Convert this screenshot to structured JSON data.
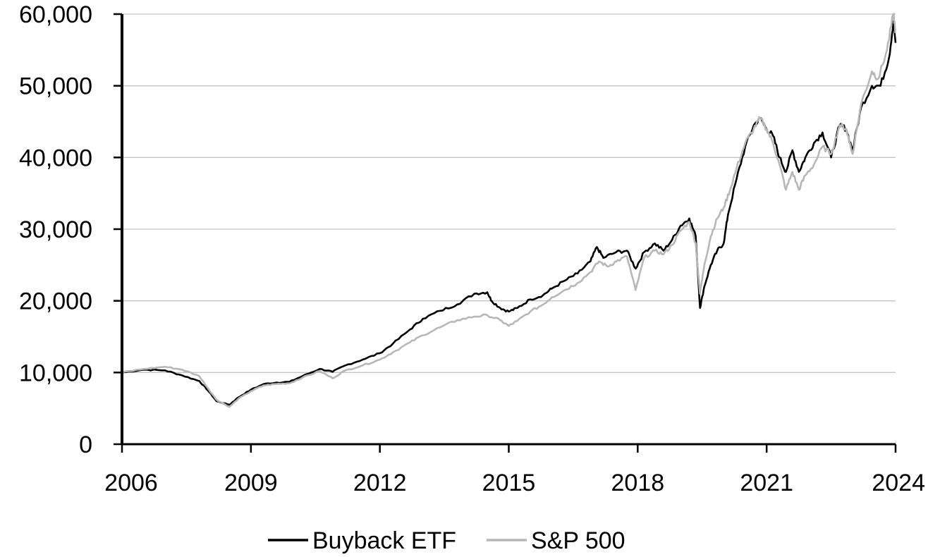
{
  "chart_data": {
    "type": "line",
    "title": "",
    "xlabel": "",
    "ylabel": "",
    "xlim": [
      2006,
      2024
    ],
    "ylim": [
      0,
      60000
    ],
    "grid": "horizontal",
    "legend_position": "bottom",
    "x_ticks": [
      "2006",
      "2009",
      "2012",
      "2015",
      "2018",
      "2021",
      "2024"
    ],
    "y_ticks": [
      "0",
      "10,000",
      "20,000",
      "30,000",
      "40,000",
      "50,000",
      "60,000"
    ],
    "series": [
      {
        "name": "Buyback ETF",
        "color": "#000000",
        "points": [
          [
            2006.0,
            10000
          ],
          [
            2006.5,
            10400
          ],
          [
            2007.0,
            10300
          ],
          [
            2007.4,
            9600
          ],
          [
            2007.8,
            8800
          ],
          [
            2008.0,
            7500
          ],
          [
            2008.2,
            6000
          ],
          [
            2008.5,
            5500
          ],
          [
            2008.7,
            6500
          ],
          [
            2009.0,
            7600
          ],
          [
            2009.3,
            8400
          ],
          [
            2009.6,
            8600
          ],
          [
            2009.9,
            8700
          ],
          [
            2010.2,
            9500
          ],
          [
            2010.6,
            10500
          ],
          [
            2010.9,
            10100
          ],
          [
            2011.2,
            11000
          ],
          [
            2011.6,
            11800
          ],
          [
            2012.0,
            12700
          ],
          [
            2012.3,
            14000
          ],
          [
            2012.7,
            16000
          ],
          [
            2013.0,
            17500
          ],
          [
            2013.4,
            18600
          ],
          [
            2013.8,
            19500
          ],
          [
            2014.2,
            21000
          ],
          [
            2014.5,
            21200
          ],
          [
            2014.6,
            20000
          ],
          [
            2014.8,
            19000
          ],
          [
            2015.0,
            18500
          ],
          [
            2015.2,
            19000
          ],
          [
            2015.5,
            20200
          ],
          [
            2015.8,
            20800
          ],
          [
            2016.0,
            21700
          ],
          [
            2016.3,
            22800
          ],
          [
            2016.6,
            23800
          ],
          [
            2016.9,
            25500
          ],
          [
            2017.05,
            27500
          ],
          [
            2017.2,
            26000
          ],
          [
            2017.5,
            26800
          ],
          [
            2017.75,
            27000
          ],
          [
            2017.95,
            24500
          ],
          [
            2018.15,
            26800
          ],
          [
            2018.4,
            28000
          ],
          [
            2018.6,
            27000
          ],
          [
            2018.8,
            28500
          ],
          [
            2019.0,
            30500
          ],
          [
            2019.2,
            31500
          ],
          [
            2019.35,
            29000
          ],
          [
            2019.45,
            19000
          ],
          [
            2019.55,
            22000
          ],
          [
            2019.7,
            25000
          ],
          [
            2019.85,
            27000
          ],
          [
            2020.0,
            28000
          ],
          [
            2020.1,
            32000
          ],
          [
            2020.3,
            37000
          ],
          [
            2020.5,
            41500
          ],
          [
            2020.7,
            44500
          ],
          [
            2020.85,
            45500
          ],
          [
            2021.0,
            44000
          ],
          [
            2021.15,
            43000
          ],
          [
            2021.3,
            40000
          ],
          [
            2021.45,
            38000
          ],
          [
            2021.6,
            41000
          ],
          [
            2021.75,
            38000
          ],
          [
            2021.9,
            40000
          ],
          [
            2022.1,
            42000
          ],
          [
            2022.3,
            43500
          ],
          [
            2022.5,
            40000
          ],
          [
            2022.7,
            44500
          ],
          [
            2022.85,
            44000
          ],
          [
            2023.0,
            41000
          ],
          [
            2023.2,
            47000
          ],
          [
            2023.45,
            50000
          ],
          [
            2023.65,
            50000
          ],
          [
            2023.85,
            54000
          ],
          [
            2023.95,
            59000
          ],
          [
            2024.0,
            56000
          ]
        ]
      },
      {
        "name": "S&P 500",
        "color": "#b7b7b7",
        "points": [
          [
            2006.0,
            10000
          ],
          [
            2006.5,
            10500
          ],
          [
            2007.0,
            10800
          ],
          [
            2007.4,
            10400
          ],
          [
            2007.8,
            9500
          ],
          [
            2008.0,
            7800
          ],
          [
            2008.2,
            6200
          ],
          [
            2008.5,
            5200
          ],
          [
            2008.7,
            6300
          ],
          [
            2009.0,
            7400
          ],
          [
            2009.3,
            8200
          ],
          [
            2009.6,
            8400
          ],
          [
            2009.9,
            8500
          ],
          [
            2010.2,
            9300
          ],
          [
            2010.6,
            10200
          ],
          [
            2010.9,
            9200
          ],
          [
            2011.2,
            10300
          ],
          [
            2011.6,
            11000
          ],
          [
            2012.0,
            11800
          ],
          [
            2012.3,
            12800
          ],
          [
            2012.7,
            14200
          ],
          [
            2013.0,
            15200
          ],
          [
            2013.4,
            16300
          ],
          [
            2013.8,
            17300
          ],
          [
            2014.2,
            17800
          ],
          [
            2014.5,
            18000
          ],
          [
            2014.8,
            17300
          ],
          [
            2015.0,
            16500
          ],
          [
            2015.2,
            17200
          ],
          [
            2015.5,
            18500
          ],
          [
            2015.8,
            19500
          ],
          [
            2016.0,
            20500
          ],
          [
            2016.3,
            21500
          ],
          [
            2016.6,
            22500
          ],
          [
            2016.9,
            24000
          ],
          [
            2017.1,
            25500
          ],
          [
            2017.3,
            24800
          ],
          [
            2017.5,
            25500
          ],
          [
            2017.75,
            26200
          ],
          [
            2017.95,
            21500
          ],
          [
            2018.15,
            26000
          ],
          [
            2018.4,
            27000
          ],
          [
            2018.6,
            26500
          ],
          [
            2018.8,
            27800
          ],
          [
            2019.0,
            29800
          ],
          [
            2019.2,
            31000
          ],
          [
            2019.35,
            28000
          ],
          [
            2019.45,
            21000
          ],
          [
            2019.55,
            25000
          ],
          [
            2019.7,
            29000
          ],
          [
            2019.85,
            31500
          ],
          [
            2020.0,
            33000
          ],
          [
            2020.15,
            35500
          ],
          [
            2020.3,
            38500
          ],
          [
            2020.5,
            42000
          ],
          [
            2020.7,
            44000
          ],
          [
            2020.85,
            45500
          ],
          [
            2021.0,
            44000
          ],
          [
            2021.15,
            42000
          ],
          [
            2021.3,
            39000
          ],
          [
            2021.45,
            35500
          ],
          [
            2021.6,
            38000
          ],
          [
            2021.75,
            35500
          ],
          [
            2021.9,
            37500
          ],
          [
            2022.1,
            39000
          ],
          [
            2022.3,
            41500
          ],
          [
            2022.5,
            40500
          ],
          [
            2022.7,
            44500
          ],
          [
            2022.85,
            44000
          ],
          [
            2023.0,
            40500
          ],
          [
            2023.2,
            47500
          ],
          [
            2023.45,
            52000
          ],
          [
            2023.6,
            51000
          ],
          [
            2023.8,
            55000
          ],
          [
            2023.95,
            60000
          ],
          [
            2024.0,
            57500
          ]
        ]
      }
    ]
  }
}
